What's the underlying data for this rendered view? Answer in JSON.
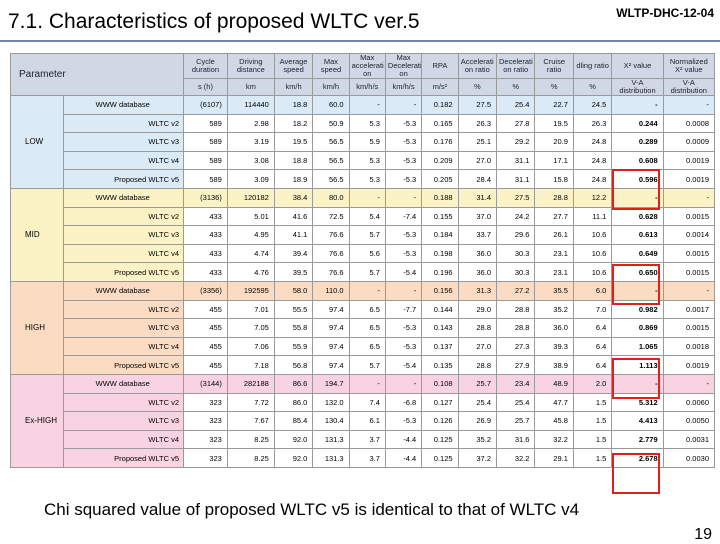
{
  "slide": {
    "title": "7.1. Characteristics of proposed WLTC ver.5",
    "doc_id": "WLTP-DHC-12-04",
    "caption": "Chi squared value of proposed WLTC v5 is identical to that of WLTC v4",
    "page_number": "19"
  },
  "table": {
    "header_param": "Parameter",
    "columns": [
      {
        "label": "Cycle duration",
        "unit": "s (h)"
      },
      {
        "label": "Driving distance",
        "unit": "km"
      },
      {
        "label": "Average speed",
        "unit": "km/h"
      },
      {
        "label": "Max speed",
        "unit": "km/h"
      },
      {
        "label": "Max accelerati on",
        "unit": "km/h/s"
      },
      {
        "label": "Max Decelerati on",
        "unit": "km/h/s"
      },
      {
        "label": "RPA",
        "unit": "m/s²"
      },
      {
        "label": "Accelerati on ratio",
        "unit": "%"
      },
      {
        "label": "Decelerati on ratio",
        "unit": "%"
      },
      {
        "label": "Cruise ratio",
        "unit": "%"
      },
      {
        "label": "dling ratio",
        "unit": "%"
      },
      {
        "label": "X² value",
        "unit": "V-A distribution"
      },
      {
        "label": "Normalized X² value",
        "unit": "V-A distribution"
      }
    ],
    "groups": [
      {
        "key": "low",
        "label": "LOW",
        "rows": [
          {
            "name": "WWW database",
            "values": [
              "(6107)",
              "114440",
              "18.8",
              "60.0",
              "-",
              "-",
              "0.182",
              "27.5",
              "25.4",
              "22.7",
              "24.5",
              "-",
              "-"
            ]
          },
          {
            "name": "WLTC v2",
            "values": [
              "589",
              "2.98",
              "18.2",
              "50.9",
              "5.3",
              "-5.3",
              "0.165",
              "26.3",
              "27.8",
              "19.5",
              "26.3",
              "0.244",
              "0.0008"
            ]
          },
          {
            "name": "WLTC v3",
            "values": [
              "589",
              "3.19",
              "19.5",
              "56.5",
              "5.9",
              "-5.3",
              "0.176",
              "25.1",
              "29.2",
              "20.9",
              "24.8",
              "0.289",
              "0.0009"
            ]
          },
          {
            "name": "WLTC v4",
            "values": [
              "589",
              "3.08",
              "18.8",
              "56.5",
              "5.3",
              "-5.3",
              "0.209",
              "27.0",
              "31.1",
              "17.1",
              "24.8",
              "0.608",
              "0.0019"
            ]
          },
          {
            "name": "Proposed WLTC v5",
            "values": [
              "589",
              "3.09",
              "18.9",
              "56.5",
              "5.3",
              "-5.3",
              "0.205",
              "28.4",
              "31.1",
              "15.8",
              "24.8",
              "0.596",
              "0.0019"
            ]
          }
        ]
      },
      {
        "key": "mid",
        "label": "MID",
        "rows": [
          {
            "name": "WWW database",
            "values": [
              "(3136)",
              "120182",
              "38.4",
              "80.0",
              "-",
              "-",
              "0.188",
              "31.4",
              "27.5",
              "28.8",
              "12.2",
              "-",
              "-"
            ]
          },
          {
            "name": "WLTC v2",
            "values": [
              "433",
              "5.01",
              "41.6",
              "72.5",
              "5.4",
              "-7.4",
              "0.155",
              "37.0",
              "24.2",
              "27.7",
              "11.1",
              "0.628",
              "0.0015"
            ]
          },
          {
            "name": "WLTC v3",
            "values": [
              "433",
              "4.95",
              "41.1",
              "76.6",
              "5.7",
              "-5.3",
              "0.184",
              "33.7",
              "29.6",
              "26.1",
              "10.6",
              "0.613",
              "0.0014"
            ]
          },
          {
            "name": "WLTC v4",
            "values": [
              "433",
              "4.74",
              "39.4",
              "76.6",
              "5.6",
              "-5.3",
              "0.198",
              "36.0",
              "30.3",
              "23.1",
              "10.6",
              "0.649",
              "0.0015"
            ]
          },
          {
            "name": "Proposed WLTC v5",
            "values": [
              "433",
              "4.76",
              "39.5",
              "76.6",
              "5.7",
              "-5.4",
              "0.196",
              "36.0",
              "30.3",
              "23.1",
              "10.6",
              "0.650",
              "0.0015"
            ]
          }
        ]
      },
      {
        "key": "high",
        "label": "HIGH",
        "rows": [
          {
            "name": "WWW database",
            "values": [
              "(3356)",
              "192595",
              "58.0",
              "110.0",
              "-",
              "-",
              "0.156",
              "31.3",
              "27.2",
              "35.5",
              "6.0",
              "-",
              "-"
            ]
          },
          {
            "name": "WLTC v2",
            "values": [
              "455",
              "7.01",
              "55.5",
              "97.4",
              "6.5",
              "-7.7",
              "0.144",
              "29.0",
              "28.8",
              "35.2",
              "7.0",
              "0.982",
              "0.0017"
            ]
          },
          {
            "name": "WLTC v3",
            "values": [
              "455",
              "7.05",
              "55.8",
              "97.4",
              "6.5",
              "-5.3",
              "0.143",
              "28.8",
              "28.8",
              "36.0",
              "6.4",
              "0.869",
              "0.0015"
            ]
          },
          {
            "name": "WLTC v4",
            "values": [
              "455",
              "7.06",
              "55.9",
              "97.4",
              "6.5",
              "-5.3",
              "0.137",
              "27.0",
              "27.3",
              "39.3",
              "6.4",
              "1.065",
              "0.0018"
            ]
          },
          {
            "name": "Proposed WLTC v5",
            "values": [
              "455",
              "7.18",
              "56.8",
              "97.4",
              "5.7",
              "-5.4",
              "0.135",
              "28.8",
              "27.9",
              "38.9",
              "6.4",
              "1.113",
              "0.0019"
            ]
          }
        ]
      },
      {
        "key": "exhigh",
        "label": "Ex-HIGH",
        "rows": [
          {
            "name": "WWW database",
            "values": [
              "(3144)",
              "282188",
              "86.6",
              "194.7",
              "-",
              "-",
              "0.108",
              "25.7",
              "23.4",
              "48.9",
              "2.0",
              "-",
              "-"
            ]
          },
          {
            "name": "WLTC v2",
            "values": [
              "323",
              "7.72",
              "86.0",
              "132.0",
              "7.4",
              "-6.8",
              "0.127",
              "25.4",
              "25.4",
              "47.7",
              "1.5",
              "5.312",
              "0.0060"
            ]
          },
          {
            "name": "WLTC v3",
            "values": [
              "323",
              "7.67",
              "85.4",
              "130.4",
              "6.1",
              "-5.3",
              "0.126",
              "26.9",
              "25.7",
              "45.8",
              "1.5",
              "4.413",
              "0.0050"
            ]
          },
          {
            "name": "WLTC v4",
            "values": [
              "323",
              "8.25",
              "92.0",
              "131.3",
              "3.7",
              "-4.4",
              "0.125",
              "35.2",
              "31.6",
              "32.2",
              "1.5",
              "2.779",
              "0.0031"
            ]
          },
          {
            "name": "Proposed WLTC v5",
            "values": [
              "323",
              "8.25",
              "92.0",
              "131.3",
              "3.7",
              "-4.4",
              "0.125",
              "37.2",
              "32.2",
              "29.1",
              "1.5",
              "2.678",
              "0.0030"
            ]
          }
        ]
      }
    ]
  },
  "colors": {
    "header_bg": "#cfd8e4",
    "low": "#dbeaf7",
    "mid": "#fbf2c6",
    "high": "#fbdcc3",
    "exhigh": "#f9d3e1",
    "highlight": "#e0201a"
  }
}
